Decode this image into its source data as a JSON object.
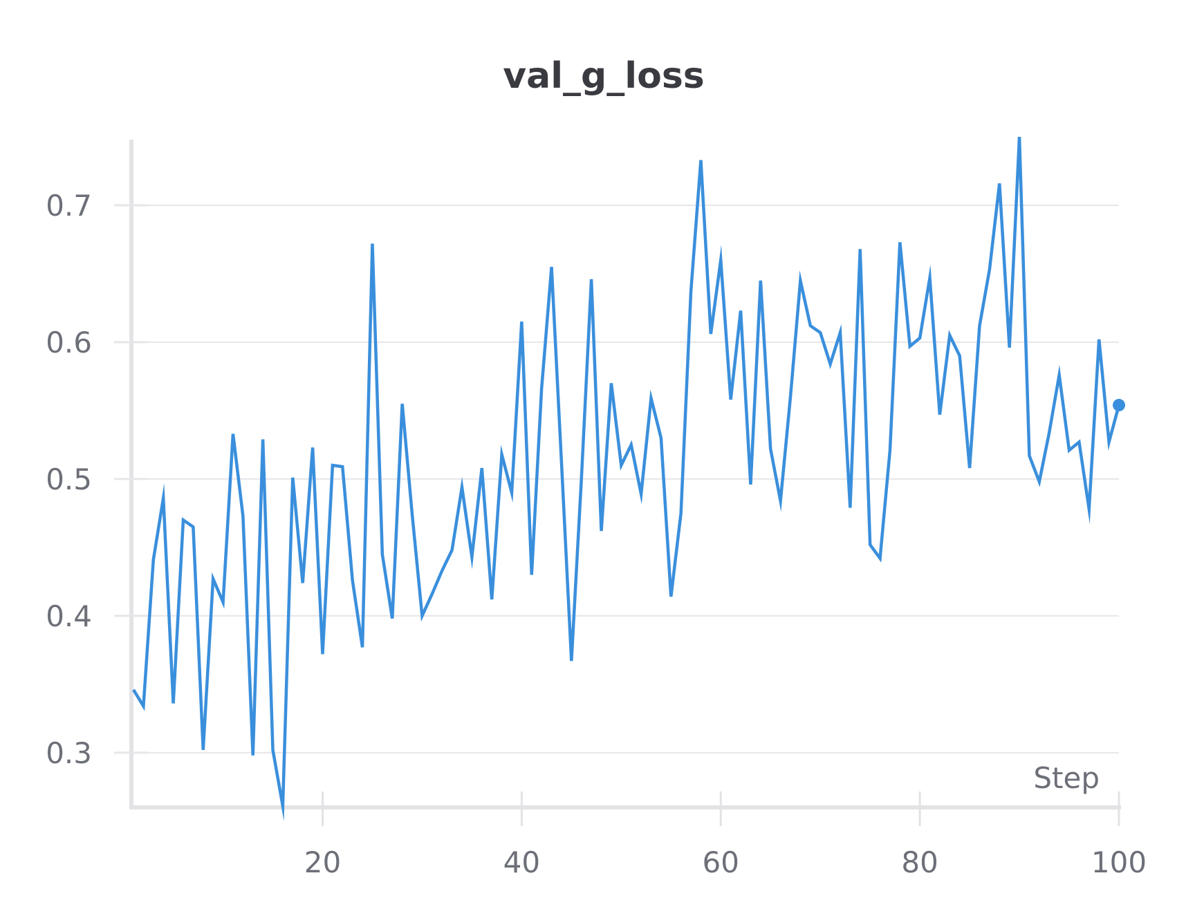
{
  "chart_data": {
    "type": "line",
    "title": "val_g_loss",
    "xlabel": "Step",
    "ylabel": "",
    "xlim": [
      1,
      100
    ],
    "ylim": [
      0.26,
      0.748
    ],
    "xticks": [
      20,
      40,
      60,
      80,
      100
    ],
    "xtick_labels": [
      "20",
      "40",
      "60",
      "80",
      "100"
    ],
    "yticks": [
      0.3,
      0.4,
      0.5,
      0.6,
      0.7
    ],
    "ytick_labels": [
      "0.3",
      "0.4",
      "0.5",
      "0.6",
      "0.7"
    ],
    "grid": "horizontal",
    "legend": "none",
    "colors": {
      "line": "#3a8fdc",
      "grid": "#e6e6e9",
      "axis": "#e3e3e6",
      "title": "#3a3b41",
      "tick": "#6d6f78"
    },
    "series": [
      {
        "x": [
          1,
          2,
          3,
          4,
          5,
          6,
          7,
          8,
          9,
          10,
          11,
          12,
          13,
          14,
          15,
          16,
          17,
          18,
          19,
          20,
          21,
          22,
          23,
          24,
          25,
          26,
          27,
          28,
          29,
          30,
          31,
          32,
          33,
          34,
          35,
          36,
          37,
          38,
          39,
          40,
          41,
          42,
          43,
          44,
          45,
          46,
          47,
          48,
          49,
          50,
          51,
          52,
          53,
          54,
          55,
          56,
          57,
          58,
          59,
          60,
          61,
          62,
          63,
          64,
          65,
          66,
          67,
          68,
          69,
          70,
          71,
          72,
          73,
          74,
          75,
          76,
          77,
          78,
          79,
          80,
          81,
          82,
          83,
          84,
          85,
          86,
          87,
          88,
          89,
          90,
          91,
          92,
          93,
          94,
          95,
          96,
          97,
          98,
          99,
          100
        ],
        "values": [
          0.346,
          0.334,
          0.441,
          0.486,
          0.336,
          0.47,
          0.465,
          0.302,
          0.427,
          0.41,
          0.533,
          0.473,
          0.298,
          0.529,
          0.302,
          0.261,
          0.501,
          0.424,
          0.523,
          0.372,
          0.51,
          0.509,
          0.426,
          0.377,
          0.672,
          0.445,
          0.398,
          0.555,
          0.474,
          0.4,
          0.416,
          0.433,
          0.448,
          0.494,
          0.443,
          0.508,
          0.412,
          0.518,
          0.49,
          0.615,
          0.43,
          0.566,
          0.655,
          0.512,
          0.367,
          0.5,
          0.646,
          0.462,
          0.57,
          0.51,
          0.525,
          0.489,
          0.559,
          0.53,
          0.414,
          0.475,
          0.637,
          0.733,
          0.606,
          0.66,
          0.558,
          0.623,
          0.496,
          0.645,
          0.522,
          0.484,
          0.56,
          0.645,
          0.612,
          0.607,
          0.584,
          0.607,
          0.479,
          0.668,
          0.452,
          0.442,
          0.521,
          0.673,
          0.597,
          0.603,
          0.647,
          0.547,
          0.605,
          0.59,
          0.508,
          0.612,
          0.653,
          0.716,
          0.596,
          0.75,
          0.517,
          0.498,
          0.534,
          0.576,
          0.521,
          0.527,
          0.478,
          0.602,
          0.527,
          0.554
        ]
      }
    ],
    "last_point_marker": true
  }
}
